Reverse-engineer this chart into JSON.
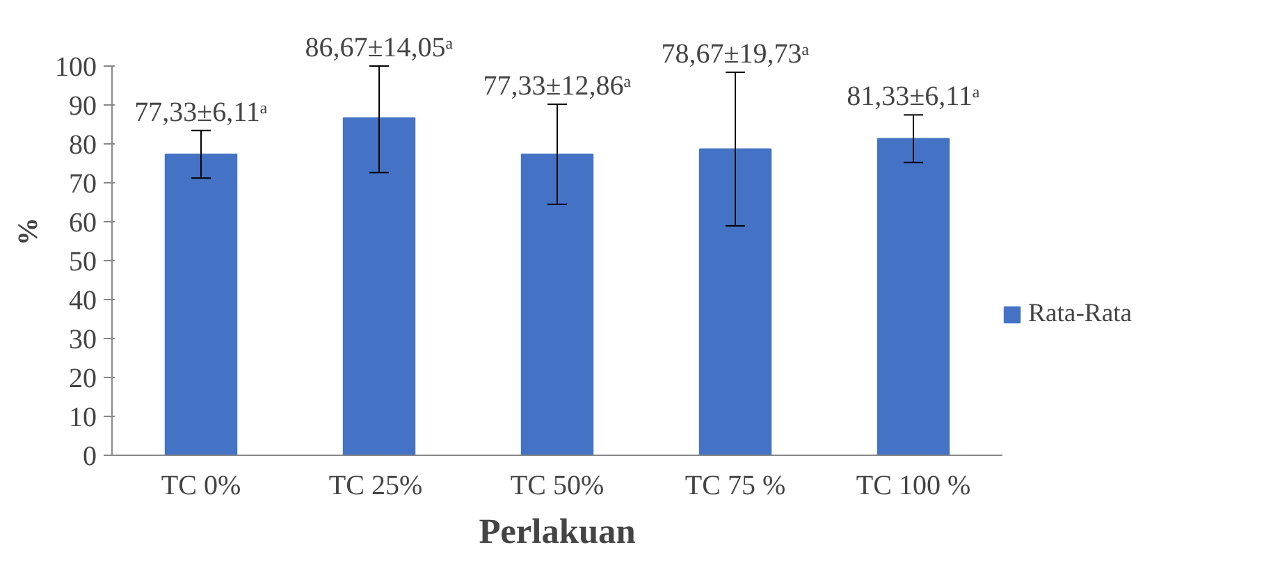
{
  "chart_data": {
    "type": "bar",
    "xlabel": "Perlakuan",
    "ylabel": "%",
    "categories": [
      "TC 0%",
      "TC  25%",
      "TC 50%",
      "TC 75 %",
      "TC 100 %"
    ],
    "series": [
      {
        "name": "Rata-Rata",
        "color": "#4472c4",
        "values": [
          77.33,
          86.67,
          77.33,
          78.67,
          81.33
        ],
        "errors": [
          6.11,
          [
            72.62,
            100
          ],
          12.86,
          19.73,
          6.11
        ],
        "value_labels": [
          "77,33±6,11ᵃ",
          "86,67±14,05ᵃ",
          "77,33±12,86ᵃ",
          "78,67±19,73ᵃ",
          "81,33±6,11ᵃ"
        ]
      }
    ],
    "ylim": [
      0,
      100
    ],
    "yticks": [
      0,
      10,
      20,
      30,
      40,
      50,
      60,
      70,
      80,
      90,
      100
    ],
    "grid": false,
    "legend": "right"
  }
}
